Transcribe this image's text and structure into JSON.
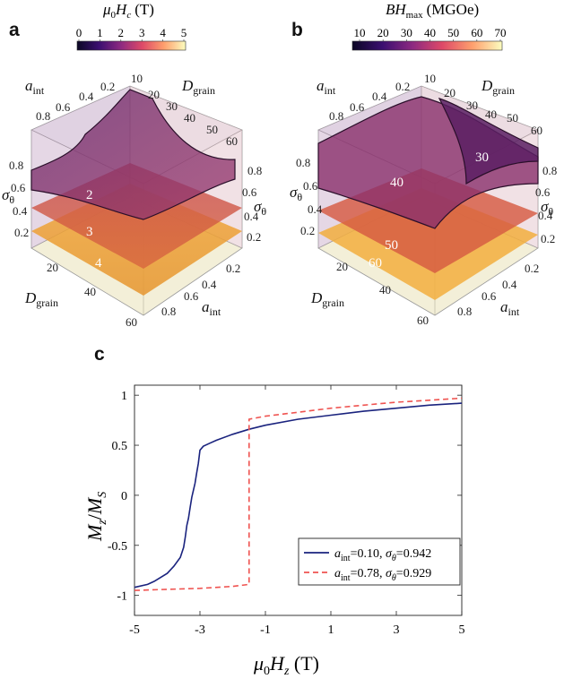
{
  "panels": {
    "a": {
      "letter": "a",
      "colorbar": {
        "label": "μ0Hc (T)",
        "label_parts": {
          "symbol": "μ",
          "sub1": "0",
          "var": "H",
          "sub2": "c",
          "unit": "(T)"
        },
        "ticks": [
          "0",
          "1",
          "2",
          "3",
          "4",
          "5"
        ],
        "colors": [
          "#0b0724",
          "#3b0f70",
          "#8c2981",
          "#de4968",
          "#fe9f6d",
          "#fcfdbf"
        ]
      },
      "axes": {
        "aint_top": {
          "name": "a",
          "sub": "int",
          "ticks": [
            "0.8",
            "0.6",
            "0.4",
            "0.2"
          ]
        },
        "dgrain_top": {
          "name": "D",
          "sub": "grain",
          "ticks": [
            "10",
            "20",
            "30",
            "40",
            "50",
            "60"
          ]
        },
        "sigma_left": {
          "name": "σ",
          "sub": "θ",
          "ticks": [
            "0.8",
            "0.6",
            "0.4",
            "0.2"
          ]
        },
        "sigma_right": {
          "name": "σ",
          "sub": "θ",
          "ticks": [
            "0.8",
            "0.6",
            "0.4",
            "0.2"
          ]
        },
        "dgrain_bottom": {
          "name": "D",
          "sub": "grain",
          "ticks": [
            "20",
            "40",
            "60"
          ]
        },
        "aint_bottom": {
          "name": "a",
          "sub": "int",
          "ticks": [
            "0.2",
            "0.4",
            "0.6",
            "0.8"
          ]
        }
      },
      "isosurface_labels": [
        "2",
        "3",
        "4"
      ]
    },
    "b": {
      "letter": "b",
      "colorbar": {
        "label": "BHmax (MGOe)",
        "label_parts": {
          "var": "BH",
          "sub": "max",
          "unit": "(MGOe)"
        },
        "ticks": [
          "10",
          "20",
          "30",
          "40",
          "50",
          "60",
          "70"
        ],
        "colors": [
          "#0b0724",
          "#3b0f70",
          "#8c2981",
          "#de4968",
          "#fe9f6d",
          "#fcfdbf"
        ]
      },
      "axes": {
        "aint_top": {
          "name": "a",
          "sub": "int",
          "ticks": [
            "0.8",
            "0.6",
            "0.4",
            "0.2"
          ]
        },
        "dgrain_top": {
          "name": "D",
          "sub": "grain",
          "ticks": [
            "10",
            "20",
            "30",
            "40",
            "50",
            "60"
          ]
        },
        "sigma_left": {
          "name": "σ",
          "sub": "θ",
          "ticks": [
            "0.8",
            "0.6",
            "0.4",
            "0.2"
          ]
        },
        "sigma_right": {
          "name": "σ",
          "sub": "θ",
          "ticks": [
            "0.8",
            "0.6",
            "0.4",
            "0.2"
          ]
        },
        "dgrain_bottom": {
          "name": "D",
          "sub": "grain",
          "ticks": [
            "20",
            "40",
            "60"
          ]
        },
        "aint_bottom": {
          "name": "a",
          "sub": "int",
          "ticks": [
            "0.2",
            "0.4",
            "0.6",
            "0.8"
          ]
        }
      },
      "isosurface_labels": [
        "30",
        "40",
        "50",
        "60"
      ]
    },
    "c": {
      "letter": "c"
    }
  },
  "chart_data": [
    {
      "type": "surface3d",
      "panel": "a",
      "title": "μ0Hc (T)",
      "x_axis": "D_grain",
      "y_axis": "a_int",
      "z_axis": "σ_θ",
      "isosurface_levels": [
        2,
        3,
        4
      ],
      "colorbar_range": [
        0,
        5
      ]
    },
    {
      "type": "surface3d",
      "panel": "b",
      "title": "BHmax (MGOe)",
      "x_axis": "D_grain",
      "y_axis": "a_int",
      "z_axis": "σ_θ",
      "isosurface_levels": [
        30,
        40,
        50,
        60
      ],
      "colorbar_range": [
        10,
        70
      ]
    },
    {
      "type": "line",
      "panel": "c",
      "xlabel": "μ0Hz (T)",
      "ylabel": "Mz/MS",
      "xlim": [
        -5,
        5
      ],
      "ylim": [
        -1.2,
        1.1
      ],
      "xticks": [
        "-5",
        "-3",
        "-1",
        "1",
        "3",
        "5"
      ],
      "xtick_values": [
        -5,
        -3,
        -1,
        1,
        3,
        5
      ],
      "yticks": [
        "1",
        "0.5",
        "0",
        "-0.5",
        "-1"
      ],
      "ytick_values": [
        1,
        0.5,
        0,
        -0.5,
        -1
      ],
      "legend_position": "bottom-right",
      "series": [
        {
          "name": "a_int=0.10, σθ=0.942",
          "legend_parts": {
            "a": "a",
            "sub": "int",
            "a_val": "=0.10,",
            "s": "σ",
            "ssub": "θ",
            "s_val": "=0.942"
          },
          "color": "#1a237e",
          "dash": "solid",
          "x": [
            -5.0,
            -4.6,
            -4.4,
            -4.0,
            -3.8,
            -3.6,
            -3.5,
            -3.45,
            -3.4,
            -3.35,
            -3.3,
            -3.25,
            -3.2,
            -3.15,
            -3.1,
            -3.05,
            -3.0,
            -2.9,
            -2.7,
            -2.5,
            -2.0,
            -1.5,
            -1.0,
            0.0,
            1.0,
            2.0,
            3.0,
            4.0,
            5.0
          ],
          "y": [
            -0.92,
            -0.89,
            -0.86,
            -0.78,
            -0.71,
            -0.62,
            -0.52,
            -0.42,
            -0.3,
            -0.23,
            -0.12,
            -0.02,
            0.05,
            0.12,
            0.22,
            0.32,
            0.45,
            0.49,
            0.52,
            0.55,
            0.61,
            0.66,
            0.7,
            0.76,
            0.8,
            0.84,
            0.87,
            0.9,
            0.92
          ]
        },
        {
          "name": "a_int=0.78, σθ=0.929",
          "legend_parts": {
            "a": "a",
            "sub": "int",
            "a_val": "=0.78,",
            "s": "σ",
            "ssub": "θ",
            "s_val": "=0.929"
          },
          "color": "#ef5350",
          "dash": "dashed",
          "x": [
            -5.0,
            -4.0,
            -3.0,
            -2.0,
            -1.5,
            -1.5,
            -1.0,
            0.0,
            1.0,
            2.0,
            3.0,
            4.0,
            5.0
          ],
          "y": [
            -0.95,
            -0.94,
            -0.93,
            -0.91,
            -0.89,
            0.76,
            0.79,
            0.83,
            0.87,
            0.9,
            0.93,
            0.95,
            0.97
          ]
        }
      ]
    }
  ]
}
